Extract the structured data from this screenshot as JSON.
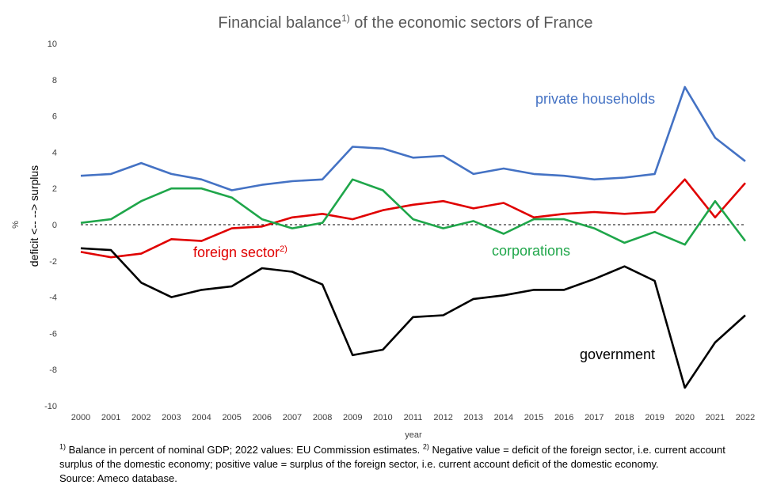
{
  "chart_data": {
    "type": "line",
    "title": "Financial balance",
    "title_suffix": " of the economic sectors of France",
    "title_note_marker": "1)",
    "xlabel": "year",
    "ylabel_unit": "%",
    "ylabel": "deficit <-- --> surplus",
    "ylim": [
      -10,
      10
    ],
    "yticks": [
      "-10",
      "-8",
      "-6",
      "-4",
      "-2",
      "0",
      "2",
      "4",
      "6",
      "8",
      "10"
    ],
    "x": [
      "2000",
      "2001",
      "2002",
      "2003",
      "2004",
      "2005",
      "2006",
      "2007",
      "2008",
      "2009",
      "2010",
      "2011",
      "2012",
      "2013",
      "2014",
      "2015",
      "2016",
      "2017",
      "2018",
      "2019",
      "2020",
      "2021",
      "2022"
    ],
    "zero_line": "dashed",
    "grid": false,
    "series": [
      {
        "name": "private households",
        "color": "#4472C4",
        "values": [
          2.7,
          2.8,
          3.4,
          2.8,
          2.5,
          1.9,
          2.2,
          2.4,
          2.5,
          4.3,
          4.2,
          3.7,
          3.8,
          2.8,
          3.1,
          2.8,
          2.7,
          2.5,
          2.6,
          2.8,
          7.6,
          4.8,
          3.5
        ]
      },
      {
        "name": "foreign sector",
        "note_marker": "2)",
        "color": "#E00000",
        "values": [
          -1.5,
          -1.8,
          -1.6,
          -0.8,
          -0.9,
          -0.2,
          -0.1,
          0.4,
          0.6,
          0.3,
          0.8,
          1.1,
          1.3,
          0.9,
          1.2,
          0.4,
          0.6,
          0.7,
          0.6,
          0.7,
          2.5,
          0.4,
          2.3
        ]
      },
      {
        "name": "corporations",
        "color": "#1FA64A",
        "values": [
          0.1,
          0.3,
          1.3,
          2.0,
          2.0,
          1.5,
          0.3,
          -0.2,
          0.1,
          2.5,
          1.9,
          0.3,
          -0.2,
          0.2,
          -0.5,
          0.3,
          0.3,
          -0.2,
          -1.0,
          -0.4,
          -1.1,
          1.3,
          -0.9
        ]
      },
      {
        "name": "government",
        "color": "#000000",
        "values": [
          -1.3,
          -1.4,
          -3.2,
          -4.0,
          -3.6,
          -3.4,
          -2.4,
          -2.6,
          -3.3,
          -7.2,
          -6.9,
          -5.1,
          -5.0,
          -4.1,
          -3.9,
          -3.6,
          -3.6,
          -3.0,
          -2.3,
          -3.1,
          -9.0,
          -6.5,
          -5.0
        ]
      }
    ],
    "footnotes": {
      "n1_marker": "1)",
      "n1_text": " Balance in percent of nominal GDP; 2022  values: EU Commission estimates. ",
      "n2_marker": "2)",
      "n2_text": " Negative value = deficit of the foreign sector, i.e.  current account surplus of the domestic economy; positive value = surplus of the foreign sector, i.e. current account deficit of the domestic economy.",
      "source": "Source: Ameco database."
    }
  }
}
